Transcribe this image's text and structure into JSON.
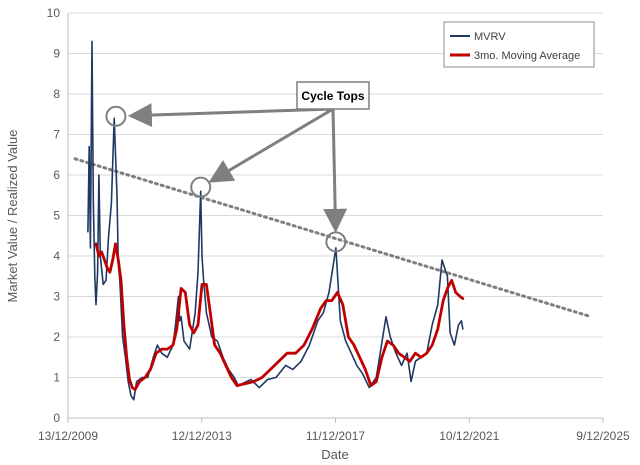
{
  "chart_data": {
    "type": "line",
    "title": "",
    "xlabel": "Date",
    "ylabel": "Market Value / Realized Value",
    "x_tick_labels": [
      "13/12/2009",
      "12/12/2013",
      "11/12/2017",
      "10/12/2021",
      "9/12/2025"
    ],
    "x_ticks": [
      "2009-12-13",
      "2013-12-12",
      "2017-12-11",
      "2021-12-10",
      "2025-12-09"
    ],
    "xlim": [
      "2009-12-13",
      "2025-12-09"
    ],
    "ylim": [
      0,
      10
    ],
    "y_ticks": [
      0,
      1,
      2,
      3,
      4,
      5,
      6,
      7,
      8,
      9,
      10
    ],
    "grid": "horizontal major gridlines",
    "legend_position": "top-right",
    "series": [
      {
        "name": "MVRV",
        "color": "#1f3864",
        "x": [
          "2010-07-18",
          "2010-08-01",
          "2010-08-15",
          "2010-09-01",
          "2010-09-15",
          "2010-10-01",
          "2010-10-15",
          "2010-11-01",
          "2010-11-15",
          "2010-12-01",
          "2011-01-01",
          "2011-02-01",
          "2011-03-01",
          "2011-04-01",
          "2011-05-01",
          "2011-06-01",
          "2011-06-15",
          "2011-07-01",
          "2011-08-01",
          "2011-09-01",
          "2011-10-01",
          "2011-11-01",
          "2011-12-01",
          "2012-01-01",
          "2012-03-01",
          "2012-05-01",
          "2012-07-01",
          "2012-08-15",
          "2012-10-01",
          "2012-12-01",
          "2013-02-01",
          "2013-03-01",
          "2013-04-01",
          "2013-04-15",
          "2013-05-01",
          "2013-06-01",
          "2013-08-01",
          "2013-10-01",
          "2013-11-01",
          "2013-12-01",
          "2013-12-15",
          "2014-01-01",
          "2014-02-01",
          "2014-04-01",
          "2014-06-01",
          "2014-08-01",
          "2014-10-01",
          "2014-12-01",
          "2015-01-15",
          "2015-03-01",
          "2015-06-01",
          "2015-09-01",
          "2015-12-01",
          "2016-03-01",
          "2016-06-15",
          "2016-09-01",
          "2016-12-01",
          "2017-03-01",
          "2017-06-01",
          "2017-08-01",
          "2017-10-01",
          "2017-12-15",
          "2018-02-01",
          "2018-04-01",
          "2018-06-01",
          "2018-08-01",
          "2018-10-01",
          "2018-12-15",
          "2019-03-01",
          "2019-06-15",
          "2019-08-01",
          "2019-10-01",
          "2019-12-01",
          "2020-02-01",
          "2020-03-15",
          "2020-05-01",
          "2020-07-01",
          "2020-09-01",
          "2020-11-01",
          "2021-01-01",
          "2021-02-15",
          "2021-04-15",
          "2021-05-15",
          "2021-07-01",
          "2021-08-15",
          "2021-09-15",
          "2021-10-01"
        ],
        "values": [
          4.6,
          6.7,
          4.2,
          9.3,
          5.4,
          3.5,
          2.8,
          3.6,
          6.0,
          4.0,
          3.3,
          3.4,
          4.5,
          5.3,
          7.4,
          5.5,
          3.8,
          3.4,
          2.0,
          1.5,
          0.9,
          0.55,
          0.45,
          0.9,
          1.0,
          1.0,
          1.5,
          1.8,
          1.6,
          1.5,
          1.8,
          2.3,
          3.0,
          2.4,
          2.5,
          1.9,
          1.7,
          2.6,
          3.6,
          5.6,
          4.0,
          3.4,
          2.6,
          2.0,
          1.9,
          1.5,
          1.2,
          1.0,
          0.8,
          0.85,
          0.95,
          0.75,
          0.95,
          1.0,
          1.3,
          1.2,
          1.4,
          1.8,
          2.4,
          2.6,
          3.1,
          4.2,
          2.4,
          1.9,
          1.6,
          1.3,
          1.1,
          0.75,
          1.0,
          2.5,
          2.0,
          1.6,
          1.3,
          1.6,
          0.9,
          1.4,
          1.5,
          1.6,
          2.3,
          2.8,
          3.9,
          3.5,
          2.1,
          1.8,
          2.3,
          2.4,
          2.2
        ]
      },
      {
        "name": "3mo. Moving Average",
        "color": "#c00000",
        "x": [
          "2010-10-15",
          "2010-11-15",
          "2010-12-15",
          "2011-01-15",
          "2011-02-15",
          "2011-03-15",
          "2011-04-15",
          "2011-05-15",
          "2011-06-15",
          "2011-07-15",
          "2011-08-15",
          "2011-09-15",
          "2011-10-15",
          "2011-11-15",
          "2011-12-15",
          "2012-02-01",
          "2012-04-01",
          "2012-06-01",
          "2012-08-01",
          "2012-10-01",
          "2012-12-01",
          "2013-02-01",
          "2013-03-15",
          "2013-05-01",
          "2013-06-15",
          "2013-08-01",
          "2013-09-15",
          "2013-11-01",
          "2013-12-15",
          "2014-02-01",
          "2014-03-15",
          "2014-05-01",
          "2014-07-01",
          "2014-09-01",
          "2014-11-01",
          "2015-01-01",
          "2015-04-01",
          "2015-07-01",
          "2015-10-01",
          "2016-01-01",
          "2016-04-01",
          "2016-07-01",
          "2016-10-01",
          "2017-01-01",
          "2017-04-01",
          "2017-07-01",
          "2017-09-01",
          "2017-11-01",
          "2018-01-01",
          "2018-03-01",
          "2018-05-01",
          "2018-07-01",
          "2018-09-01",
          "2018-11-01",
          "2019-01-01",
          "2019-03-01",
          "2019-05-01",
          "2019-07-01",
          "2019-09-01",
          "2019-11-01",
          "2020-01-01",
          "2020-03-01",
          "2020-05-01",
          "2020-07-01",
          "2020-09-01",
          "2020-11-01",
          "2021-01-01",
          "2021-03-01",
          "2021-04-15",
          "2021-06-01",
          "2021-07-15",
          "2021-09-01",
          "2021-10-01"
        ],
        "values": [
          4.3,
          4.0,
          4.1,
          3.9,
          3.7,
          3.6,
          3.9,
          4.3,
          3.9,
          3.4,
          2.3,
          1.5,
          0.95,
          0.75,
          0.7,
          0.9,
          1.0,
          1.2,
          1.6,
          1.7,
          1.7,
          1.8,
          2.2,
          3.2,
          3.1,
          2.3,
          2.1,
          2.3,
          3.3,
          3.3,
          2.6,
          1.8,
          1.6,
          1.3,
          1.0,
          0.8,
          0.85,
          0.9,
          1.0,
          1.2,
          1.4,
          1.6,
          1.6,
          1.8,
          2.2,
          2.7,
          2.9,
          2.9,
          3.1,
          2.8,
          2.0,
          1.8,
          1.5,
          1.2,
          0.8,
          0.9,
          1.5,
          1.9,
          1.8,
          1.6,
          1.5,
          1.4,
          1.6,
          1.5,
          1.6,
          1.8,
          2.2,
          2.9,
          3.2,
          3.4,
          3.1,
          3.0,
          2.95
        ]
      }
    ],
    "trendline": {
      "style": "dotted",
      "color": "#7f7f7f",
      "start": {
        "x": "2010-03-01",
        "y": 6.4
      },
      "end": {
        "x": "2025-08-01",
        "y": 2.5
      }
    },
    "annotations": [
      {
        "text": "Cycle Tops",
        "targets": [
          {
            "x": "2011-05-20",
            "y": 7.45
          },
          {
            "x": "2013-12-01",
            "y": 5.7
          },
          {
            "x": "2017-12-15",
            "y": 4.35
          }
        ]
      }
    ]
  }
}
